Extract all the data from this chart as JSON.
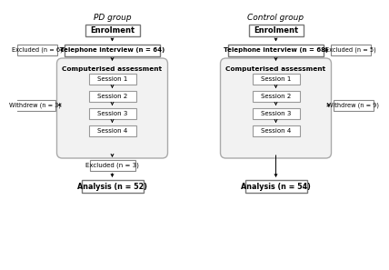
{
  "bg_color": "#ffffff",
  "title_pd": "PD group",
  "title_ctrl": "Control group",
  "pd_enrol": "Enrolment",
  "pd_tel": "Telephone interview (n = 64)",
  "pd_comp": "Computerised assessment",
  "pd_s1": "Session 1",
  "pd_s2": "Session 2",
  "pd_s3": "Session 3",
  "pd_s4": "Session 4",
  "pd_excl1": "Excluded (n = 6)",
  "pd_withdrew": "Withdrew (n = 3)",
  "pd_excl2": "Excluded (n = 3)",
  "pd_analysis": "Analysis (n = 52)",
  "ctrl_enrol": "Enrolment",
  "ctrl_tel": "Telephone interview (n = 68)",
  "ctrl_comp": "Computerised assessment",
  "ctrl_s1": "Session 1",
  "ctrl_s2": "Session 2",
  "ctrl_s3": "Session 3",
  "ctrl_s4": "Session 4",
  "ctrl_excl1": "Excluded (n = 5)",
  "ctrl_withdrew": "Withdrew (n = 9)",
  "ctrl_analysis": "Analysis (n = 54)"
}
